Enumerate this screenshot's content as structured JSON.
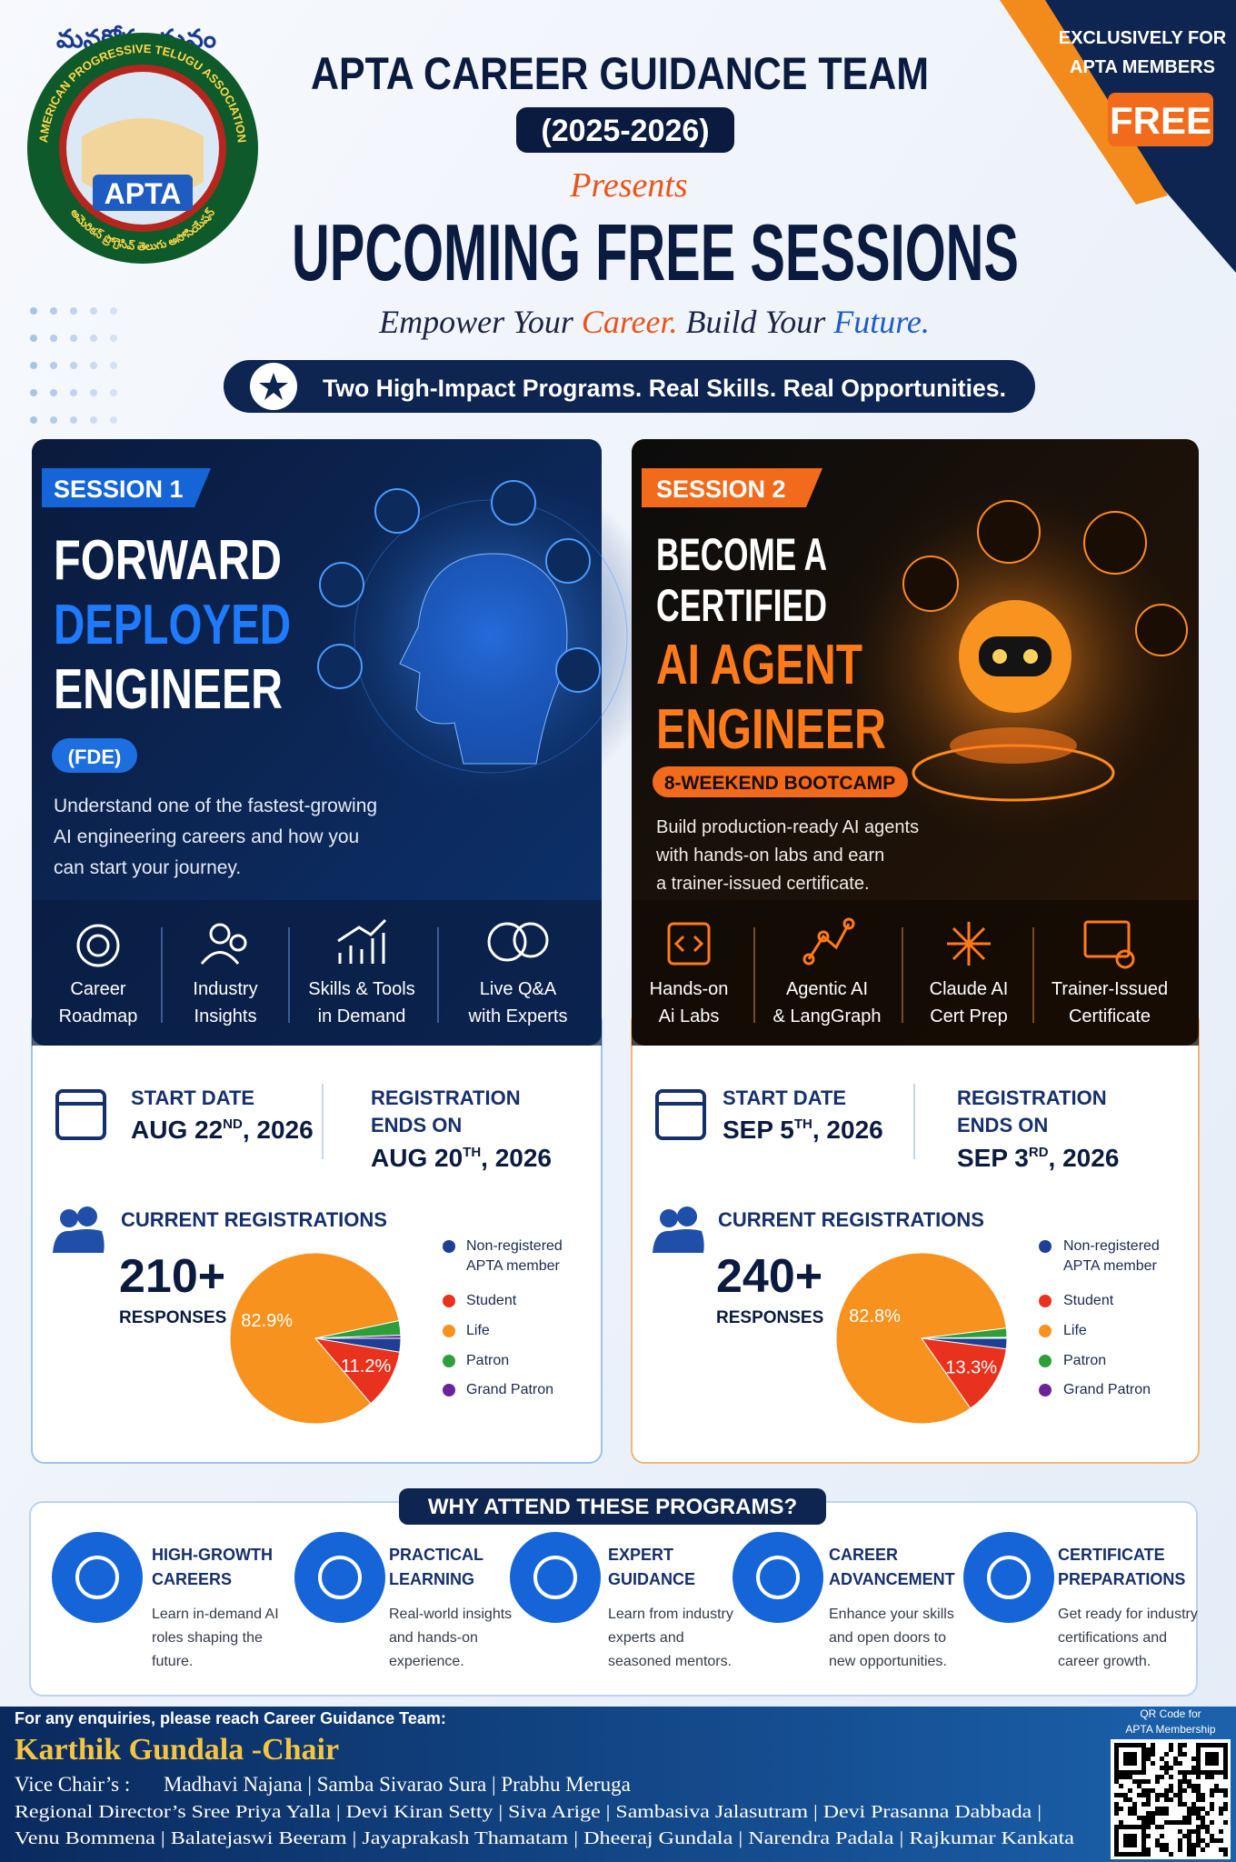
{
  "header": {
    "logo_top": "మనకోసం మనం",
    "logo_ring": "AMERICAN PROGRESSIVE TELUGU ASSOCIATION",
    "logo_name": "APTA",
    "logo_bottom": "అమెరికన్ ప్రోగ్రెసివ్ తెలుగు అసోసియేషన్",
    "title": "APTA CAREER GUIDANCE TEAM",
    "years": "(2025-2026)",
    "presents": "Presents",
    "headline": "UPCOMING FREE SESSIONS",
    "tagline": [
      "Empower Your ",
      "Career.",
      " Build Your ",
      "Future."
    ],
    "banner": "Two High-Impact Programs. Real Skills. Real Opportunities.",
    "corner": [
      "EXCLUSIVELY FOR",
      "APTA MEMBERS"
    ],
    "badge": "FREE"
  },
  "sessions": [
    {
      "tag": "SESSION 1",
      "title": [
        "FORWARD",
        "DEPLOYED",
        "ENGINEER"
      ],
      "pill": "(FDE)",
      "description": [
        "Understand one of the fastest-growing",
        "AI engineering careers and how you",
        "can start your journey."
      ],
      "features": [
        [
          "Career",
          "Roadmap"
        ],
        [
          "Industry",
          "Insights"
        ],
        [
          "Skills & Tools",
          "in Demand"
        ],
        [
          "Live Q&A",
          "with Experts"
        ]
      ],
      "start_label": "START DATE",
      "start_date": [
        "AUG 22",
        "ND",
        ", 2026"
      ],
      "reg_label": [
        "REGISTRATION",
        "ENDS ON"
      ],
      "reg_date": [
        "AUG 20",
        "TH",
        ", 2026"
      ],
      "count_label": "CURRENT REGISTRATIONS",
      "count": "210+",
      "count_unit": "RESPONSES"
    },
    {
      "tag": "SESSION 2",
      "title": [
        "BECOME A",
        "CERTIFIED",
        "AI AGENT",
        "ENGINEER"
      ],
      "pill": "8-WEEKEND BOOTCAMP",
      "description": [
        "Build production-ready AI agents",
        "with hands-on labs and earn",
        "a trainer-issued certificate."
      ],
      "features": [
        [
          "Hands-on",
          "Ai Labs"
        ],
        [
          "Agentic AI",
          "& LangGraph"
        ],
        [
          "Claude AI",
          "Cert Prep"
        ],
        [
          "Trainer-Issued",
          "Certificate"
        ]
      ],
      "start_label": "START DATE",
      "start_date": [
        "SEP 5",
        "TH",
        ", 2026"
      ],
      "reg_label": [
        "REGISTRATION",
        "ENDS ON"
      ],
      "reg_date": [
        "SEP 3",
        "RD",
        ", 2026"
      ],
      "count_label": "CURRENT REGISTRATIONS",
      "count": "240+",
      "count_unit": "RESPONSES"
    }
  ],
  "chart_data": [
    {
      "type": "pie",
      "categories": [
        "Non-registered APTA member",
        "Student",
        "Life",
        "Patron",
        "Grand Patron"
      ],
      "values": [
        2.6,
        11.2,
        82.9,
        2.7,
        0.6
      ],
      "value_labels": [
        null,
        "11.2%",
        "82.9%",
        null,
        null
      ],
      "colors": [
        "#1e3f94",
        "#e8321e",
        "#f7921e",
        "#2e9e3a",
        "#6b2398"
      ]
    },
    {
      "type": "pie",
      "categories": [
        "Non-registered APTA member",
        "Student",
        "Life",
        "Patron",
        "Grand Patron"
      ],
      "values": [
        2.0,
        13.3,
        82.8,
        1.7,
        0.2
      ],
      "value_labels": [
        null,
        "13.3%",
        "82.8%",
        null,
        null
      ],
      "colors": [
        "#1e3f94",
        "#e8321e",
        "#f7921e",
        "#2e9e3a",
        "#6b2398"
      ]
    }
  ],
  "why": {
    "title": "WHY ATTEND THESE PROGRAMS?",
    "items": [
      {
        "title": [
          "HIGH-GROWTH",
          "CAREERS"
        ],
        "text": [
          "Learn in-demand AI",
          "roles shaping the",
          "future."
        ]
      },
      {
        "title": [
          "PRACTICAL",
          "LEARNING"
        ],
        "text": [
          "Real-world insights",
          "and hands-on",
          "experience."
        ]
      },
      {
        "title": [
          "EXPERT",
          "GUIDANCE"
        ],
        "text": [
          "Learn from industry",
          "experts and",
          "seasoned mentors."
        ]
      },
      {
        "title": [
          "CAREER",
          "ADVANCEMENT"
        ],
        "text": [
          "Enhance your skills",
          "and open doors to",
          "new opportunities."
        ]
      },
      {
        "title": [
          "CERTIFICATE",
          "PREPARATIONS"
        ],
        "text": [
          "Get ready for industry",
          "certifications and",
          "career growth."
        ]
      }
    ]
  },
  "footer": {
    "enquiry": "For any enquiries, please reach Career Guidance Team:",
    "chair": "Karthik Gundala -Chair",
    "vice_label": "Vice Chair’s :",
    "vice_names": "Madhavi Najana | Samba Sivarao Sura  | Prabhu Meruga",
    "regional": "Regional Director’s Sree Priya Yalla | Devi Kiran Setty | Siva Arige | Sambasiva Jalasutram | Devi Prasanna Dabbada |",
    "regional_more": "Venu Bommena | Balatejaswi Beeram | Jayaprakash Thamatam | Dheeraj Gundala | Narendra Padala | Rajkumar Kankata",
    "qr_caption": [
      "QR Code for",
      "APTA Membership"
    ]
  }
}
